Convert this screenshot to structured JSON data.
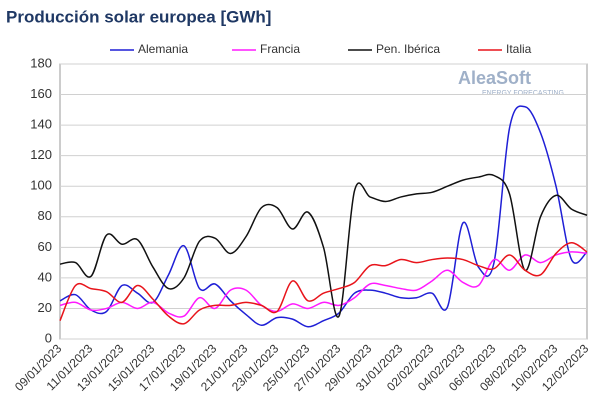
{
  "chart_data": {
    "type": "line",
    "title": "Producción solar europea [GWh]",
    "logo": "AleaSoft",
    "logo_sub": "ENERGY FORECASTING",
    "categories": [
      "09/01/2023",
      null,
      "11/01/2023",
      null,
      "13/01/2023",
      null,
      "15/01/2023",
      null,
      "17/01/2023",
      null,
      "19/01/2023",
      null,
      "21/01/2023",
      null,
      "23/01/2023",
      null,
      "25/01/2023",
      null,
      "27/01/2023",
      null,
      "29/01/2023",
      null,
      "31/01/2023",
      null,
      "02/02/2023",
      null,
      "04/02/2023",
      null,
      "06/02/2023",
      null,
      "08/02/2023",
      null,
      "10/02/2023",
      null,
      "12/02/2023"
    ],
    "series": [
      {
        "name": "Alemania",
        "color": "#1f1fd6",
        "values": [
          25,
          29,
          19,
          18,
          35,
          30,
          24,
          42,
          61,
          33,
          36,
          25,
          16,
          9,
          14,
          13,
          8,
          12,
          17,
          30,
          32,
          30,
          27,
          27,
          30,
          21,
          76,
          47,
          50,
          138,
          152,
          135,
          100,
          52,
          57
        ]
      },
      {
        "name": "Francia",
        "color": "#ff1aff",
        "values": [
          22,
          24,
          19,
          20,
          24,
          20,
          24,
          17,
          15,
          27,
          20,
          32,
          32,
          22,
          18,
          23,
          20,
          24,
          22,
          27,
          36,
          35,
          33,
          32,
          38,
          45,
          37,
          35,
          52,
          45,
          55,
          50,
          55,
          57,
          56
        ]
      },
      {
        "name": "Pen. Ibérica",
        "color": "#111111",
        "values": [
          49,
          50,
          41,
          68,
          62,
          65,
          47,
          33,
          40,
          64,
          66,
          56,
          67,
          86,
          86,
          72,
          83,
          60,
          15,
          97,
          93,
          90,
          93,
          95,
          96,
          100,
          104,
          106,
          107,
          95,
          45,
          80,
          94,
          85,
          81
        ]
      },
      {
        "name": "Italia",
        "color": "#e8141b",
        "values": [
          12,
          35,
          33,
          31,
          24,
          35,
          26,
          15,
          10,
          19,
          22,
          22,
          24,
          22,
          18,
          38,
          25,
          30,
          33,
          37,
          48,
          48,
          52,
          50,
          52,
          53,
          52,
          48,
          46,
          55,
          45,
          42,
          56,
          63,
          57
        ]
      }
    ],
    "ylim": [
      0,
      180
    ],
    "yticks": [
      0,
      20,
      40,
      60,
      80,
      100,
      120,
      140,
      160,
      180
    ],
    "grid": true,
    "legend": "top"
  }
}
